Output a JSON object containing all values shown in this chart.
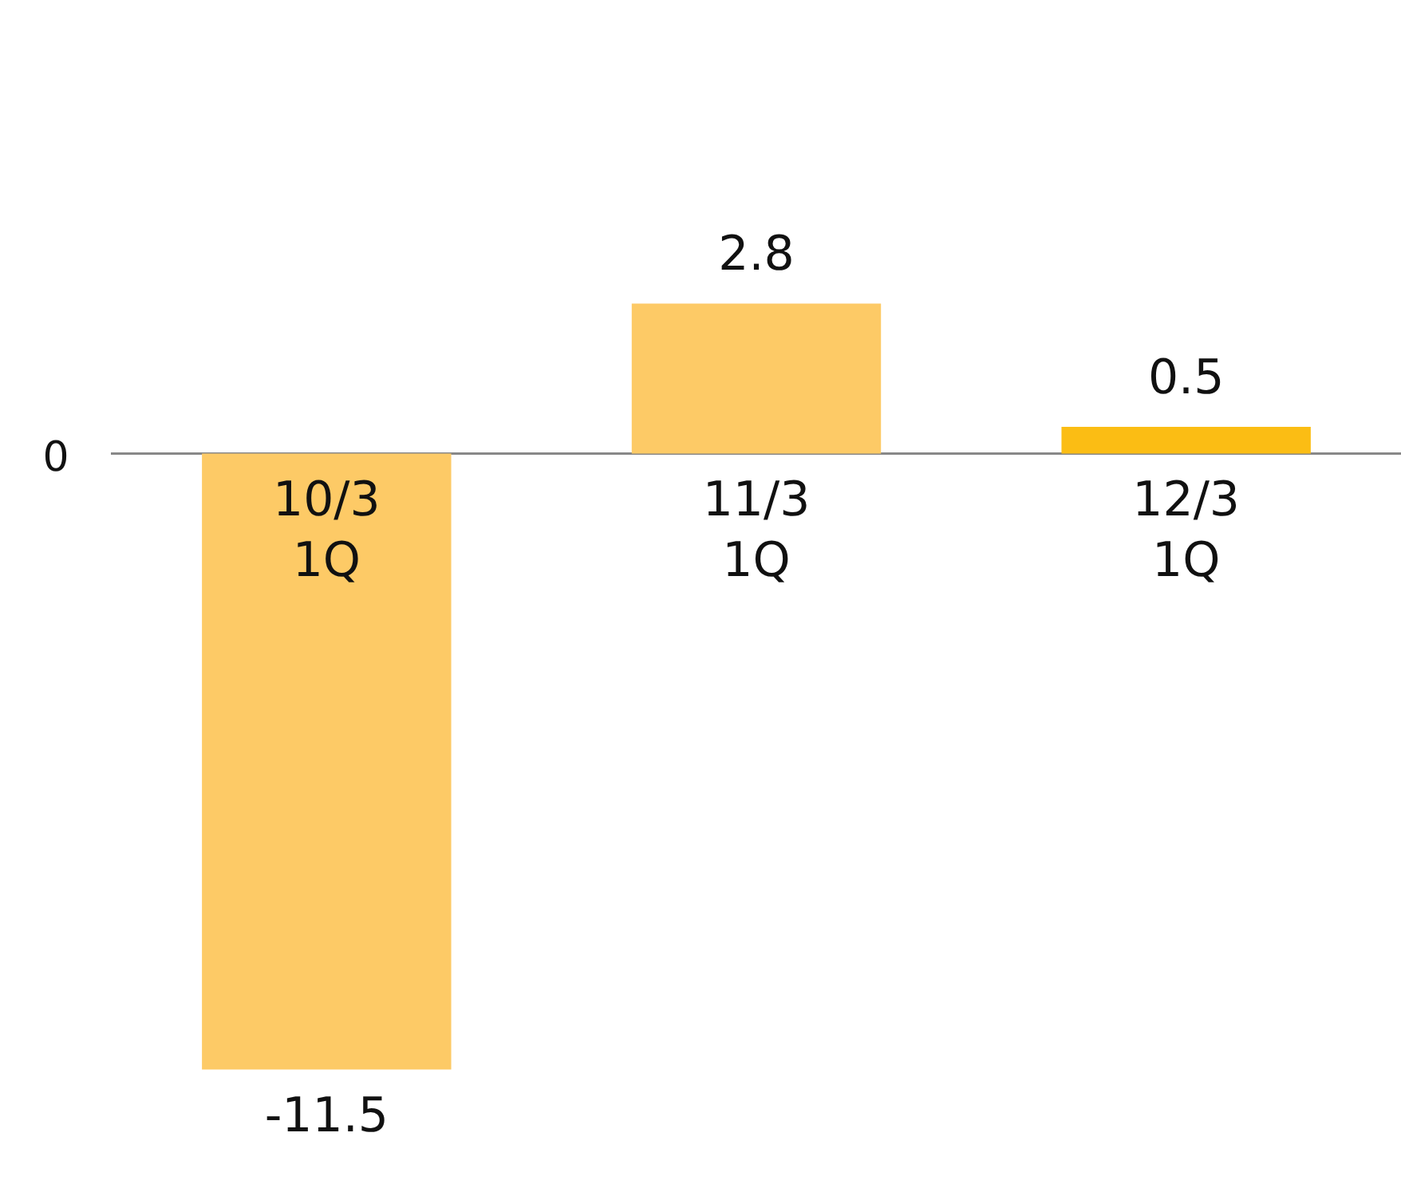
{
  "chart_data": {
    "type": "bar",
    "categories": [
      "10/3\n1Q",
      "11/3\n1Q",
      "12/3\n1Q"
    ],
    "values": [
      -11.5,
      2.8,
      0.5
    ],
    "colors": [
      "#fdca66",
      "#fdca66",
      "#fbbd14"
    ],
    "annotations": [
      "0"
    ],
    "grid": false,
    "legend": false,
    "data_labels": true
  }
}
